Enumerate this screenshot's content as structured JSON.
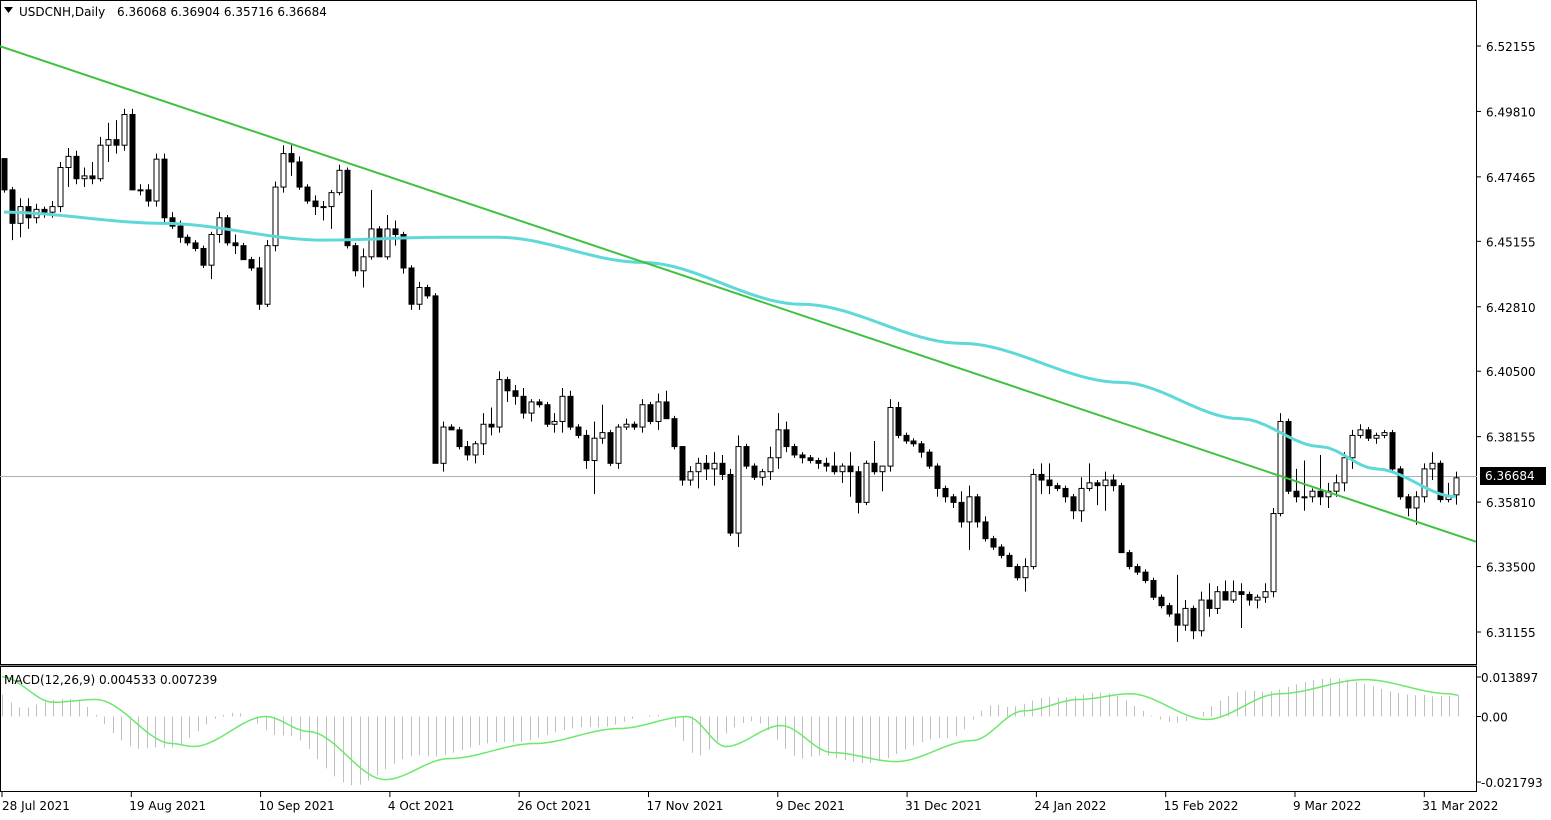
{
  "header": {
    "symbol_label": "USDCNH,Daily",
    "ohlc_label": "6.36068 6.36904 6.35716 6.36684"
  },
  "macd": {
    "label": "MACD(12,26,9) 0.004533 0.007239",
    "axis_labels": [
      "0.013897",
      "0.00",
      "-0.021793"
    ]
  },
  "price_axis_labels": [
    "6.52155",
    "6.49810",
    "6.47465",
    "6.45155",
    "6.42810",
    "6.40500",
    "6.38155",
    "6.35810",
    "6.33500",
    "6.31155"
  ],
  "current_price": "6.36684",
  "date_labels": [
    "28 Jul 2021",
    "19 Aug 2021",
    "10 Sep 2021",
    "4 Oct 2021",
    "26 Oct 2021",
    "17 Nov 2021",
    "9 Dec 2021",
    "31 Dec 2021",
    "24 Jan 2022",
    "15 Feb 2022",
    "9 Mar 2022",
    "31 Mar 2022"
  ],
  "chart_data": {
    "type": "candlestick",
    "symbol": "USDCNH",
    "timeframe": "Daily",
    "ylim": [
      6.307,
      6.5291
    ],
    "indicators": [
      "moving average (cyan)",
      "downtrend line (green)",
      "MACD(12,26,9)"
    ],
    "colors": {
      "bull_body": "#ffffff",
      "bear_body": "#000000",
      "ma": "#5fd8d8",
      "trend": "#3fc23f",
      "macd_signal": "#6ee86e",
      "macd_hist": "#c0c0c0"
    },
    "candles": [
      [
        6.4812,
        6.4812,
        6.469,
        6.47
      ],
      [
        6.47,
        6.471,
        6.452,
        6.458
      ],
      [
        6.458,
        6.467,
        6.453,
        6.464
      ],
      [
        6.464,
        6.467,
        6.456,
        6.46
      ],
      [
        6.46,
        6.465,
        6.458,
        6.463
      ],
      [
        6.463,
        6.464,
        6.46,
        6.462
      ],
      [
        6.462,
        6.466,
        6.46,
        6.464
      ],
      [
        6.464,
        6.48,
        6.462,
        6.478
      ],
      [
        6.478,
        6.485,
        6.471,
        6.482
      ],
      [
        6.482,
        6.484,
        6.472,
        6.474
      ],
      [
        6.474,
        6.478,
        6.471,
        6.475
      ],
      [
        6.475,
        6.48,
        6.472,
        6.474
      ],
      [
        6.474,
        6.489,
        6.473,
        6.486
      ],
      [
        6.486,
        6.494,
        6.48,
        6.488
      ],
      [
        6.488,
        6.495,
        6.483,
        6.486
      ],
      [
        6.486,
        6.499,
        6.484,
        6.497
      ],
      [
        6.497,
        6.499,
        6.47,
        6.47
      ],
      [
        6.47,
        6.472,
        6.468,
        6.47
      ],
      [
        6.47,
        6.472,
        6.464,
        6.466
      ],
      [
        6.466,
        6.483,
        6.464,
        6.481
      ],
      [
        6.481,
        6.483,
        6.458,
        6.46
      ],
      [
        6.46,
        6.462,
        6.456,
        6.457
      ],
      [
        6.457,
        6.459,
        6.451,
        6.453
      ],
      [
        6.453,
        6.454,
        6.45,
        6.451
      ],
      [
        6.451,
        6.452,
        6.448,
        6.449
      ],
      [
        6.449,
        6.45,
        6.442,
        6.443
      ],
      [
        6.443,
        6.455,
        6.438,
        6.454
      ],
      [
        6.454,
        6.462,
        6.451,
        6.46
      ],
      [
        6.46,
        6.461,
        6.45,
        6.451
      ],
      [
        6.451,
        6.454,
        6.447,
        6.45
      ],
      [
        6.45,
        6.451,
        6.445,
        6.445
      ],
      [
        6.445,
        6.446,
        6.441,
        6.442
      ],
      [
        6.442,
        6.446,
        6.427,
        6.429
      ],
      [
        6.429,
        6.452,
        6.428,
        6.45
      ],
      [
        6.45,
        6.473,
        6.448,
        6.471
      ],
      [
        6.471,
        6.486,
        6.469,
        6.483
      ],
      [
        6.483,
        6.486,
        6.475,
        6.48
      ],
      [
        6.48,
        6.482,
        6.47,
        6.471
      ],
      [
        6.471,
        6.472,
        6.465,
        6.466
      ],
      [
        6.466,
        6.468,
        6.461,
        6.464
      ],
      [
        6.464,
        6.466,
        6.459,
        6.464
      ],
      [
        6.464,
        6.47,
        6.456,
        6.469
      ],
      [
        6.469,
        6.479,
        6.468,
        6.477
      ],
      [
        6.477,
        6.478,
        6.449,
        6.45
      ],
      [
        6.45,
        6.451,
        6.439,
        6.441
      ],
      [
        6.441,
        6.449,
        6.435,
        6.446
      ],
      [
        6.446,
        6.47,
        6.445,
        6.456
      ],
      [
        6.456,
        6.457,
        6.446,
        6.446
      ],
      [
        6.446,
        6.461,
        6.445,
        6.456
      ],
      [
        6.456,
        6.459,
        6.45,
        6.454
      ],
      [
        6.454,
        6.455,
        6.44,
        6.442
      ],
      [
        6.442,
        6.443,
        6.427,
        6.429
      ],
      [
        6.429,
        6.437,
        6.427,
        6.435
      ],
      [
        6.435,
        6.436,
        6.431,
        6.432
      ],
      [
        6.432,
        6.433,
        6.372,
        6.372
      ],
      [
        6.372,
        6.387,
        6.369,
        6.385
      ],
      [
        6.385,
        6.386,
        6.384,
        6.384
      ],
      [
        6.384,
        6.385,
        6.377,
        6.378
      ],
      [
        6.378,
        6.38,
        6.373,
        6.375
      ],
      [
        6.375,
        6.38,
        6.372,
        6.379
      ],
      [
        6.379,
        6.39,
        6.375,
        6.386
      ],
      [
        6.386,
        6.392,
        6.382,
        6.385
      ],
      [
        6.385,
        6.405,
        6.383,
        6.402
      ],
      [
        6.402,
        6.403,
        6.394,
        6.398
      ],
      [
        6.398,
        6.4,
        6.393,
        6.396
      ],
      [
        6.396,
        6.399,
        6.388,
        6.39
      ],
      [
        6.39,
        6.395,
        6.387,
        6.394
      ],
      [
        6.394,
        6.395,
        6.392,
        6.393
      ],
      [
        6.393,
        6.394,
        6.385,
        6.386
      ],
      [
        6.386,
        6.39,
        6.383,
        6.387
      ],
      [
        6.387,
        6.399,
        6.383,
        6.396
      ],
      [
        6.396,
        6.398,
        6.384,
        6.385
      ],
      [
        6.385,
        6.386,
        6.381,
        6.382
      ],
      [
        6.382,
        6.384,
        6.37,
        6.373
      ],
      [
        6.373,
        6.387,
        6.361,
        6.381
      ],
      [
        6.381,
        6.393,
        6.379,
        6.383
      ],
      [
        6.383,
        6.384,
        6.371,
        6.372
      ],
      [
        6.372,
        6.386,
        6.37,
        6.385
      ],
      [
        6.385,
        6.388,
        6.384,
        6.386
      ],
      [
        6.386,
        6.387,
        6.384,
        6.385
      ],
      [
        6.385,
        6.395,
        6.383,
        6.393
      ],
      [
        6.393,
        6.394,
        6.386,
        6.387
      ],
      [
        6.387,
        6.397,
        6.384,
        6.394
      ],
      [
        6.394,
        6.398,
        6.388,
        6.388
      ],
      [
        6.388,
        6.389,
        6.377,
        6.378
      ],
      [
        6.378,
        6.378,
        6.364,
        6.366
      ],
      [
        6.366,
        6.371,
        6.364,
        6.369
      ],
      [
        6.369,
        6.374,
        6.363,
        6.372
      ],
      [
        6.372,
        6.375,
        6.366,
        6.37
      ],
      [
        6.37,
        6.376,
        6.364,
        6.372
      ],
      [
        6.372,
        6.375,
        6.366,
        6.368
      ],
      [
        6.368,
        6.37,
        6.346,
        6.347
      ],
      [
        6.347,
        6.382,
        6.342,
        6.378
      ],
      [
        6.378,
        6.379,
        6.37,
        6.371
      ],
      [
        6.371,
        6.372,
        6.366,
        6.367
      ],
      [
        6.367,
        6.37,
        6.364,
        6.369
      ],
      [
        6.369,
        6.378,
        6.366,
        6.374
      ],
      [
        6.374,
        6.39,
        6.37,
        6.384
      ],
      [
        6.384,
        6.387,
        6.376,
        6.378
      ],
      [
        6.378,
        6.379,
        6.374,
        6.375
      ],
      [
        6.375,
        6.376,
        6.372,
        6.374
      ],
      [
        6.374,
        6.375,
        6.372,
        6.373
      ],
      [
        6.373,
        6.374,
        6.37,
        6.372
      ],
      [
        6.372,
        6.374,
        6.369,
        6.371
      ],
      [
        6.371,
        6.376,
        6.368,
        6.369
      ],
      [
        6.369,
        6.372,
        6.365,
        6.371
      ],
      [
        6.371,
        6.376,
        6.36,
        6.369
      ],
      [
        6.369,
        6.371,
        6.354,
        6.358
      ],
      [
        6.358,
        6.373,
        6.357,
        6.372
      ],
      [
        6.372,
        6.38,
        6.368,
        6.369
      ],
      [
        6.369,
        6.371,
        6.362,
        6.371
      ],
      [
        6.371,
        6.395,
        6.369,
        6.392
      ],
      [
        6.392,
        6.394,
        6.381,
        6.382
      ],
      [
        6.382,
        6.383,
        6.379,
        6.38
      ],
      [
        6.38,
        6.381,
        6.378,
        6.379
      ],
      [
        6.379,
        6.38,
        6.374,
        6.376
      ],
      [
        6.376,
        6.377,
        6.37,
        6.371
      ],
      [
        6.371,
        6.372,
        6.36,
        6.363
      ],
      [
        6.363,
        6.364,
        6.358,
        6.36
      ],
      [
        6.36,
        6.361,
        6.356,
        6.358
      ],
      [
        6.358,
        6.362,
        6.349,
        6.351
      ],
      [
        6.351,
        6.364,
        6.341,
        6.36
      ],
      [
        6.36,
        6.361,
        6.349,
        6.351
      ],
      [
        6.351,
        6.353,
        6.344,
        6.345
      ],
      [
        6.345,
        6.346,
        6.341,
        6.342
      ],
      [
        6.342,
        6.343,
        6.338,
        6.339
      ],
      [
        6.339,
        6.34,
        6.335,
        6.335
      ],
      [
        6.335,
        6.336,
        6.33,
        6.331
      ],
      [
        6.331,
        6.338,
        6.326,
        6.335
      ],
      [
        6.335,
        6.37,
        6.334,
        6.368
      ],
      [
        6.368,
        6.372,
        6.361,
        6.366
      ],
      [
        6.366,
        6.372,
        6.361,
        6.364
      ],
      [
        6.364,
        6.365,
        6.362,
        6.363
      ],
      [
        6.363,
        6.364,
        6.358,
        6.36
      ],
      [
        6.36,
        6.361,
        6.352,
        6.355
      ],
      [
        6.355,
        6.367,
        6.351,
        6.363
      ],
      [
        6.363,
        6.372,
        6.362,
        6.365
      ],
      [
        6.365,
        6.366,
        6.357,
        6.364
      ],
      [
        6.364,
        6.369,
        6.355,
        6.366
      ],
      [
        6.366,
        6.368,
        6.362,
        6.364
      ],
      [
        6.364,
        6.365,
        6.34,
        6.34
      ],
      [
        6.34,
        6.341,
        6.334,
        6.335
      ],
      [
        6.335,
        6.336,
        6.332,
        6.333
      ],
      [
        6.333,
        6.334,
        6.329,
        6.33
      ],
      [
        6.33,
        6.331,
        6.323,
        6.324
      ],
      [
        6.324,
        6.325,
        6.32,
        6.321
      ],
      [
        6.321,
        6.322,
        6.317,
        6.318
      ],
      [
        6.318,
        6.332,
        6.308,
        6.314
      ],
      [
        6.314,
        6.323,
        6.312,
        6.32
      ],
      [
        6.32,
        6.321,
        6.309,
        6.312
      ],
      [
        6.312,
        6.326,
        6.31,
        6.323
      ],
      [
        6.323,
        6.329,
        6.317,
        6.32
      ],
      [
        6.32,
        6.328,
        6.318,
        6.326
      ],
      [
        6.326,
        6.33,
        6.323,
        6.323
      ],
      [
        6.323,
        6.33,
        6.322,
        6.326
      ],
      [
        6.326,
        6.329,
        6.313,
        6.325
      ],
      [
        6.325,
        6.326,
        6.321,
        6.323
      ],
      [
        6.323,
        6.325,
        6.32,
        6.324
      ],
      [
        6.324,
        6.329,
        6.322,
        6.326
      ],
      [
        6.326,
        6.356,
        6.324,
        6.354
      ],
      [
        6.354,
        6.39,
        6.353,
        6.387
      ],
      [
        6.387,
        6.388,
        6.361,
        6.362
      ],
      [
        6.362,
        6.37,
        6.358,
        6.36
      ],
      [
        6.36,
        6.373,
        6.355,
        6.36
      ],
      [
        6.36,
        6.363,
        6.358,
        6.362
      ],
      [
        6.362,
        6.375,
        6.357,
        6.36
      ],
      [
        6.36,
        6.365,
        6.356,
        6.362
      ],
      [
        6.362,
        6.368,
        6.36,
        6.365
      ],
      [
        6.365,
        6.376,
        6.362,
        6.374
      ],
      [
        6.374,
        6.384,
        6.37,
        6.382
      ],
      [
        6.382,
        6.386,
        6.381,
        6.384
      ],
      [
        6.384,
        6.385,
        6.38,
        6.381
      ],
      [
        6.381,
        6.383,
        6.379,
        6.382
      ],
      [
        6.382,
        6.384,
        6.381,
        6.383
      ],
      [
        6.383,
        6.384,
        6.369,
        6.37
      ],
      [
        6.37,
        6.371,
        6.359,
        6.36
      ],
      [
        6.36,
        6.361,
        6.353,
        6.356
      ],
      [
        6.356,
        6.362,
        6.35,
        6.36
      ],
      [
        6.36,
        6.372,
        6.358,
        6.37
      ],
      [
        6.37,
        6.376,
        6.366,
        6.372
      ],
      [
        6.372,
        6.373,
        6.358,
        6.359
      ],
      [
        6.359,
        6.365,
        6.358,
        6.36
      ],
      [
        6.3607,
        6.369,
        6.3572,
        6.3668
      ]
    ],
    "moving_average_anchors": [
      [
        0,
        6.462
      ],
      [
        20,
        6.458
      ],
      [
        40,
        6.452
      ],
      [
        55,
        6.453
      ],
      [
        62,
        6.453
      ],
      [
        80,
        6.444
      ],
      [
        100,
        6.429
      ],
      [
        120,
        6.415
      ],
      [
        140,
        6.401
      ],
      [
        155,
        6.388
      ],
      [
        165,
        6.378
      ],
      [
        172,
        6.37
      ],
      [
        182,
        6.36
      ],
      [
        190,
        6.3595
      ],
      [
        199,
        6.359
      ]
    ],
    "trendline": {
      "start": [
        0,
        6.521
      ],
      "end": [
        199,
        6.33
      ]
    },
    "macd_signal_anchors": [
      [
        0,
        0.014
      ],
      [
        12,
        0.005
      ],
      [
        22,
        0.006
      ],
      [
        40,
        -0.009
      ],
      [
        45,
        -0.01
      ],
      [
        62,
        0.0
      ],
      [
        72,
        -0.005
      ],
      [
        90,
        -0.021
      ],
      [
        105,
        -0.014
      ],
      [
        125,
        -0.009
      ],
      [
        145,
        -0.004
      ],
      [
        161,
        0.0
      ],
      [
        170,
        -0.01
      ],
      [
        183,
        -0.003
      ],
      [
        195,
        -0.012
      ],
      [
        210,
        -0.015
      ],
      [
        228,
        -0.008
      ],
      [
        240,
        0.002
      ],
      [
        253,
        0.006
      ],
      [
        265,
        0.008
      ],
      [
        283,
        -0.001
      ],
      [
        300,
        0.008
      ],
      [
        320,
        0.013
      ],
      [
        340,
        0.008
      ],
      [
        342,
        0.0075
      ]
    ],
    "macd_histogram_range": [
      -0.021793,
      0.013897
    ],
    "x_ticks": [
      "28 Jul 2021",
      "19 Aug 2021",
      "10 Sep 2021",
      "4 Oct 2021",
      "26 Oct 2021",
      "17 Nov 2021",
      "9 Dec 2021",
      "31 Dec 2021",
      "24 Jan 2022",
      "15 Feb 2022",
      "9 Mar 2022",
      "31 Mar 2022"
    ]
  }
}
